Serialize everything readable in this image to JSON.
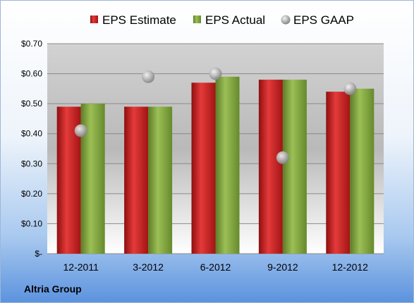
{
  "company": "Altria Group",
  "colors": {
    "estimate": "#cc1f1f",
    "actual": "#7fa33a",
    "gaap": "#a9a9a9"
  },
  "chart_data": {
    "type": "bar",
    "categories": [
      "12-2011",
      "3-2012",
      "6-2012",
      "9-2012",
      "12-2012"
    ],
    "series": [
      {
        "name": "EPS Estimate",
        "type": "bar",
        "values": [
          0.49,
          0.49,
          0.57,
          0.58,
          0.54
        ]
      },
      {
        "name": "EPS Actual",
        "type": "bar",
        "values": [
          0.5,
          0.49,
          0.59,
          0.58,
          0.55
        ]
      },
      {
        "name": "EPS GAAP",
        "type": "scatter",
        "values": [
          0.41,
          0.59,
          0.6,
          0.32,
          0.55
        ]
      }
    ],
    "ylim": [
      0,
      0.7
    ],
    "yticks": [
      0,
      0.1,
      0.2,
      0.3,
      0.4,
      0.5,
      0.6,
      0.7
    ],
    "ytick_labels": [
      "$-",
      "$0.10",
      "$0.20",
      "$0.30",
      "$0.40",
      "$0.50",
      "$0.60",
      "$0.70"
    ],
    "grid": true,
    "legend": "top"
  }
}
